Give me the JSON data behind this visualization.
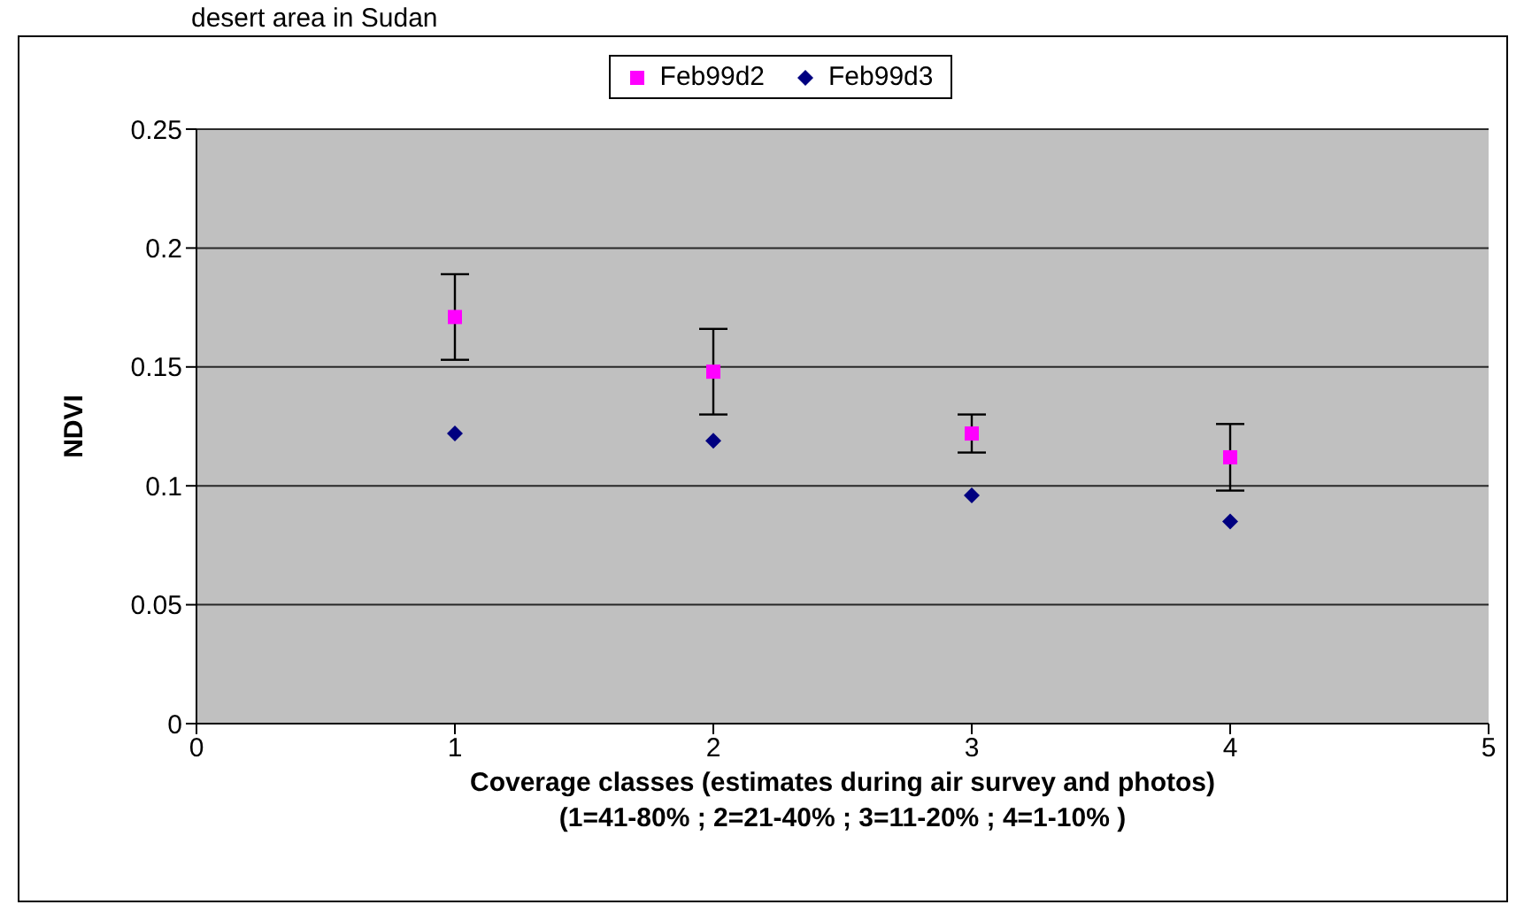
{
  "chart_data": {
    "type": "scatter",
    "title": "desert area in Sudan",
    "xlabel": "Coverage classes (estimates during air survey and photos)\n(1=41-80% ; 2=21-40% ; 3=11-20% ; 4=1-10% )",
    "ylabel": "NDVI",
    "x": [
      1,
      2,
      3,
      4
    ],
    "series": [
      {
        "name": "Feb99d2",
        "color": "#ff00ff",
        "marker": "square",
        "values": [
          0.171,
          0.148,
          0.122,
          0.112
        ],
        "errors": [
          0.018,
          0.018,
          0.008,
          0.014
        ]
      },
      {
        "name": "Feb99d3",
        "color": "#000080",
        "marker": "diamond",
        "values": [
          0.122,
          0.119,
          0.096,
          0.085
        ]
      }
    ],
    "xlim": [
      0,
      5
    ],
    "xticks": [
      0,
      1,
      2,
      3,
      4,
      5
    ],
    "ylim": [
      0,
      0.25
    ],
    "yticks": [
      0,
      0.05,
      0.1,
      0.15,
      0.2,
      0.25
    ],
    "grid": "y",
    "legend": "top"
  }
}
